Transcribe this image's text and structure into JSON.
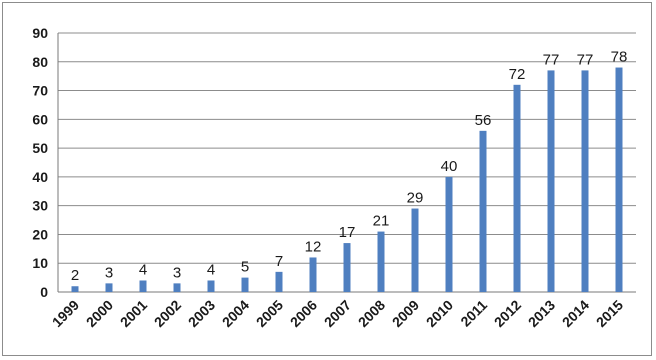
{
  "chart_data": {
    "type": "bar",
    "categories": [
      "1999",
      "2000",
      "2001",
      "2002",
      "2003",
      "2004",
      "2005",
      "2006",
      "2007",
      "2008",
      "2009",
      "2010",
      "2011",
      "2012",
      "2013",
      "2014",
      "2015"
    ],
    "values": [
      2,
      3,
      4,
      3,
      4,
      5,
      7,
      12,
      17,
      21,
      29,
      40,
      56,
      72,
      77,
      77,
      78
    ],
    "data_labels": [
      "2",
      "3",
      "4",
      "3",
      "4",
      "5",
      "7",
      "12",
      "17",
      "21",
      "29",
      "40",
      "56",
      "72",
      "77",
      "77",
      "78"
    ],
    "ylim": [
      0,
      90
    ],
    "y_ticks": [
      0,
      10,
      20,
      30,
      40,
      50,
      60,
      70,
      80,
      90
    ],
    "y_tick_labels": [
      "0",
      "10",
      "20",
      "30",
      "40",
      "50",
      "60",
      "70",
      "80",
      "90"
    ],
    "title": "",
    "xlabel": "",
    "ylabel": "",
    "grid": "horizontal",
    "bar_color": "#4f7fc0",
    "grid_color": "#8c8c8c"
  }
}
